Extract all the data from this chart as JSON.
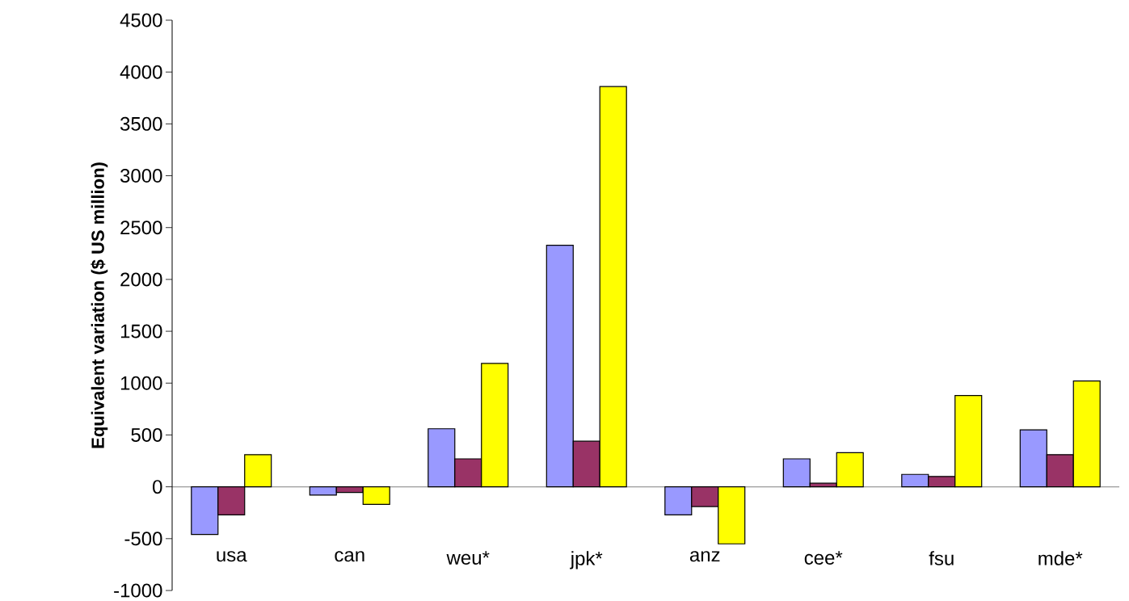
{
  "chart_data": {
    "type": "bar",
    "ylabel": "Equivalent variation ($ US million)",
    "categories": [
      "usa",
      "can",
      "weu*",
      "jpk*",
      "anz",
      "cee*",
      "fsu",
      "mde*"
    ],
    "series": [
      {
        "color": "#9999ff",
        "values": [
          -460,
          -80,
          560,
          2330,
          -270,
          270,
          120,
          550
        ]
      },
      {
        "color": "#993366",
        "values": [
          -270,
          -55,
          270,
          440,
          -190,
          35,
          100,
          310
        ]
      },
      {
        "color": "#ffff00",
        "values": [
          310,
          -170,
          1190,
          3860,
          -550,
          330,
          880,
          1020
        ]
      }
    ],
    "ylim": [
      -1000,
      4500
    ],
    "yticks": [
      -1000,
      -500,
      0,
      500,
      1000,
      1500,
      2000,
      2500,
      3000,
      3500,
      4000,
      4500
    ]
  }
}
